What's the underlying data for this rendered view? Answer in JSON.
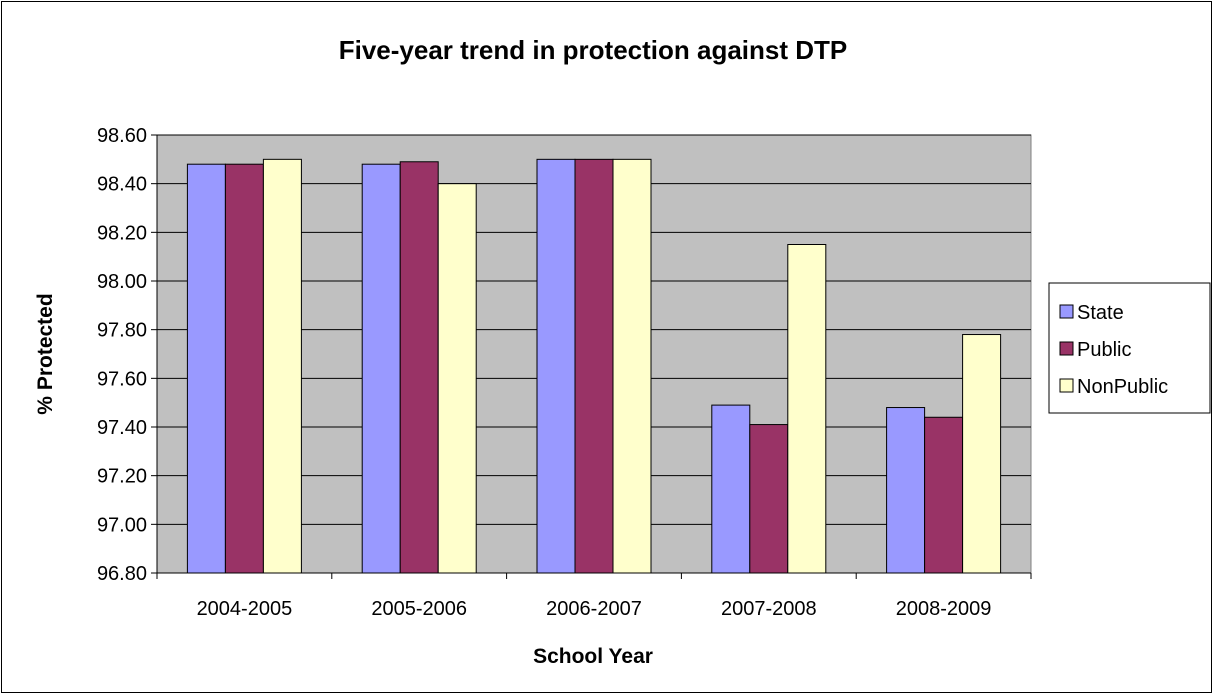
{
  "chart_data": {
    "type": "bar",
    "title": "Five-year trend in protection against DTP",
    "xlabel": "School Year",
    "ylabel": "% Protected",
    "categories": [
      "2004-2005",
      "2005-2006",
      "2006-2007",
      "2007-2008",
      "2008-2009"
    ],
    "series": [
      {
        "name": "State",
        "values": [
          98.48,
          98.48,
          98.5,
          97.49,
          97.48
        ],
        "color": "#9999ff"
      },
      {
        "name": "Public",
        "values": [
          98.48,
          98.49,
          98.5,
          97.41,
          97.44
        ],
        "color": "#993366"
      },
      {
        "name": "NonPublic",
        "values": [
          98.5,
          98.4,
          98.5,
          98.15,
          97.78
        ],
        "color": "#ffffcc"
      }
    ],
    "ylim": [
      96.8,
      98.6
    ],
    "yticks": [
      "96.80",
      "97.00",
      "97.20",
      "97.40",
      "97.60",
      "97.80",
      "98.00",
      "98.20",
      "98.40",
      "98.60"
    ],
    "grid": true,
    "plot_background": "#c0c0c0",
    "legend_position": "right"
  }
}
